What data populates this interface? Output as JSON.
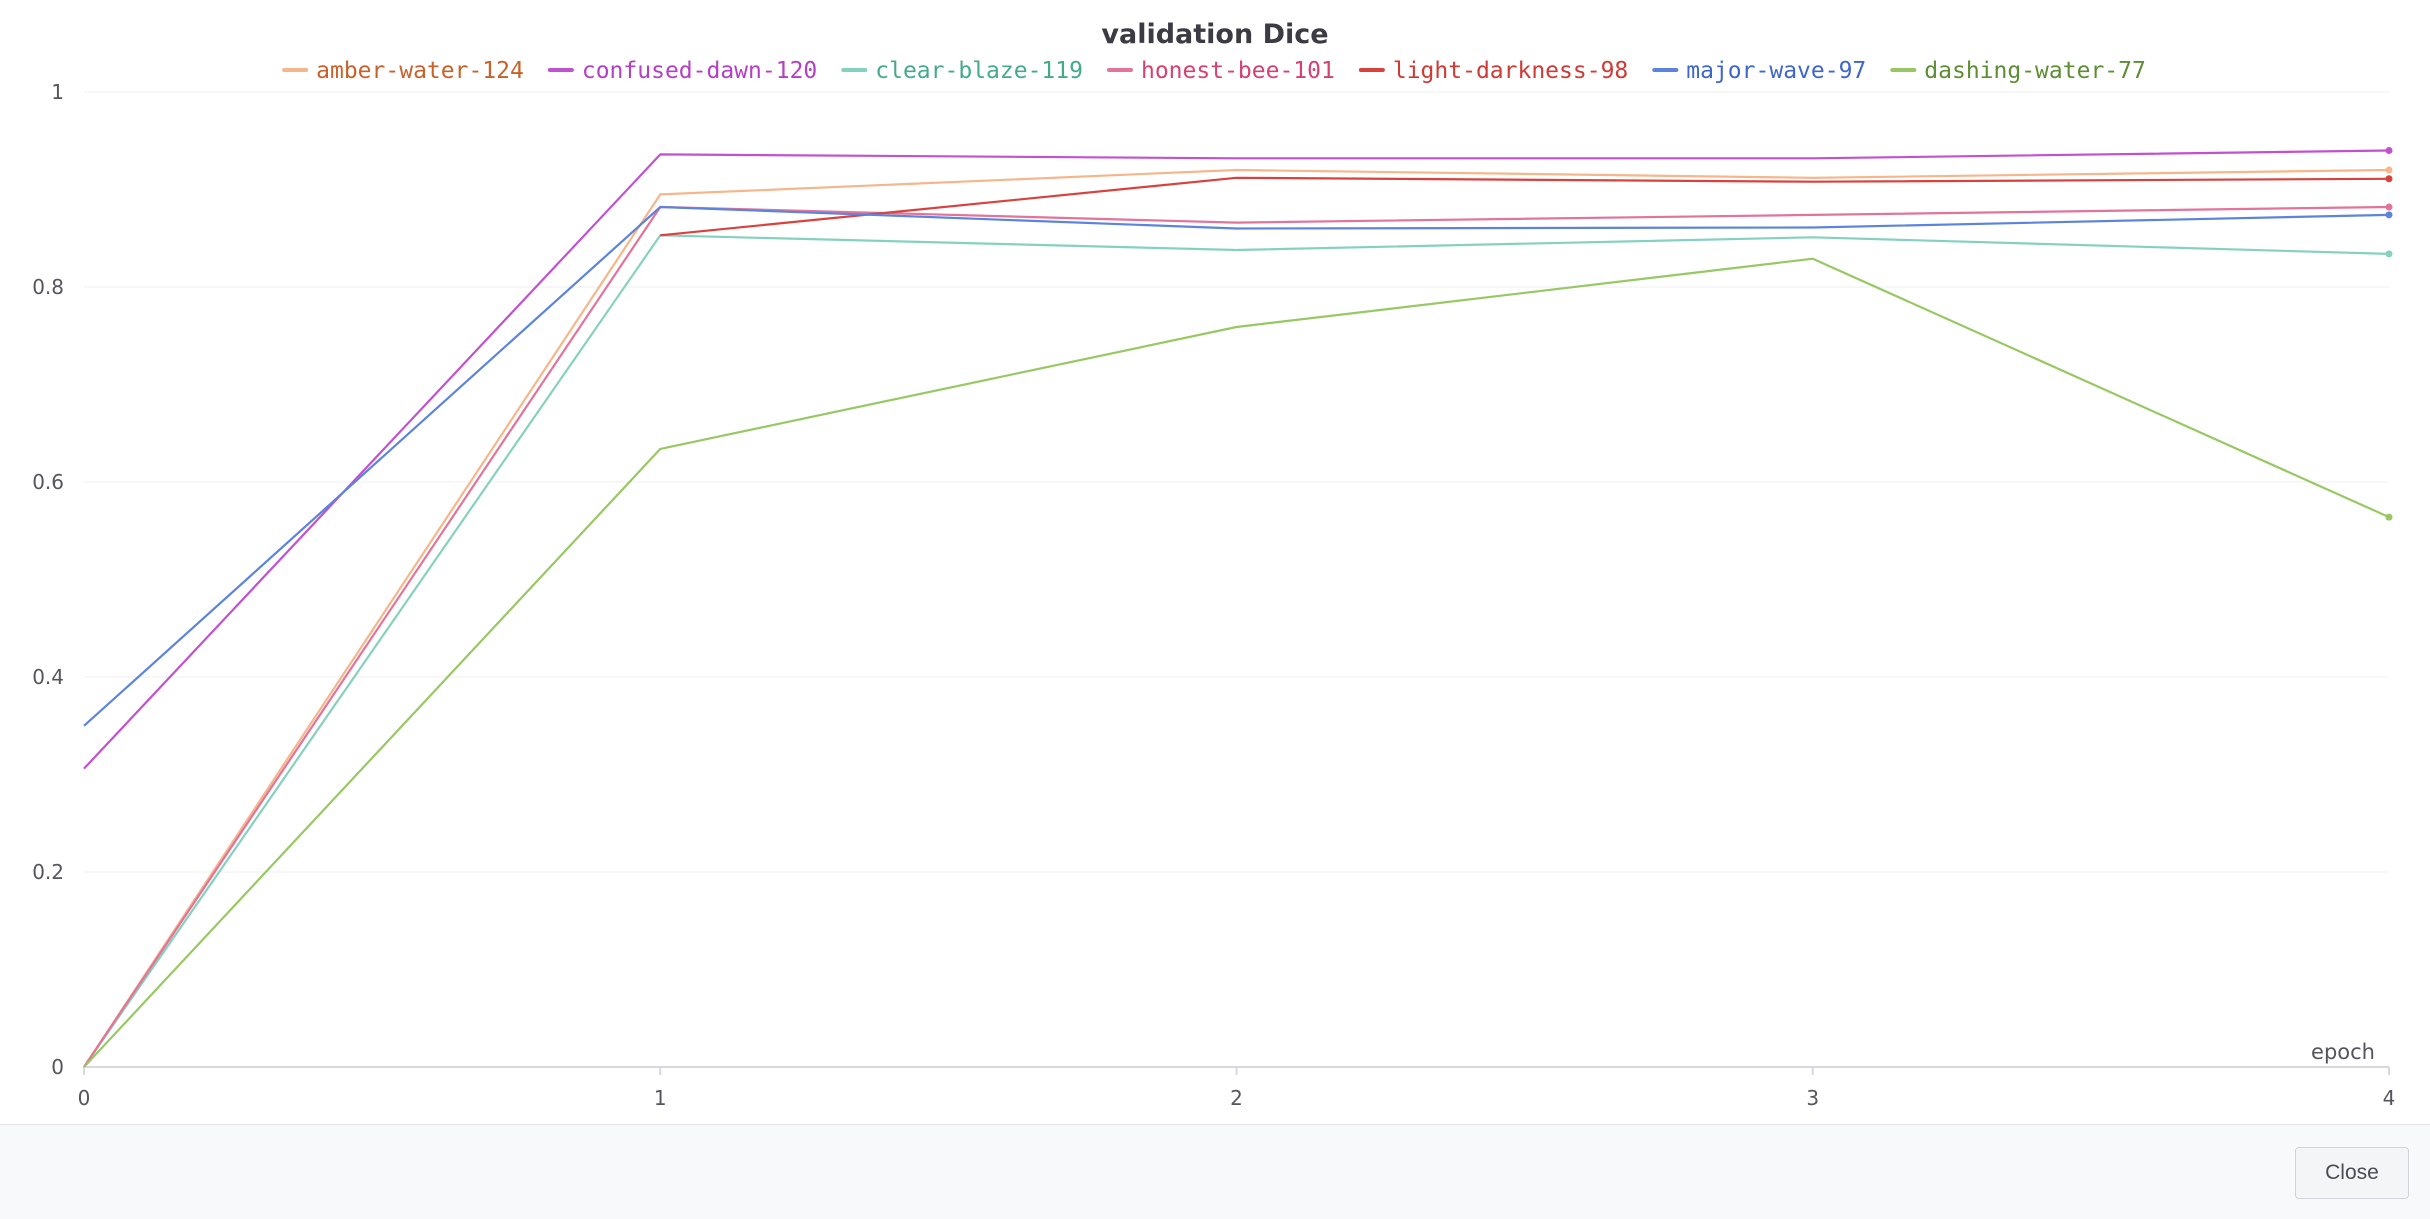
{
  "chart_data": {
    "type": "line",
    "title": "validation Dice",
    "xlabel": "epoch",
    "ylabel": "",
    "x": [
      0,
      1,
      2,
      3,
      4
    ],
    "xlim": [
      0,
      4
    ],
    "ylim": [
      0,
      1
    ],
    "x_ticks": [
      "0",
      "1",
      "2",
      "3",
      "4"
    ],
    "y_ticks": [
      "0",
      "0.2",
      "0.4",
      "0.6",
      "0.8",
      "1"
    ],
    "y_tick_values": [
      0,
      0.2,
      0.4,
      0.6,
      0.8,
      1
    ],
    "grid": true,
    "legend_position": "top",
    "series": [
      {
        "name": "amber-water-124",
        "color": "#f5b68b",
        "text_color": "#c8622a",
        "values": [
          0,
          0.895,
          0.92,
          0.912,
          0.92
        ]
      },
      {
        "name": "confused-dawn-120",
        "color": "#c251d0",
        "text_color": "#b53fc4",
        "values": [
          0.306,
          0.936,
          0.932,
          0.932,
          0.94
        ]
      },
      {
        "name": "clear-blaze-119",
        "color": "#86d1be",
        "text_color": "#45a98f",
        "values": [
          0,
          0.853,
          0.838,
          0.851,
          0.834
        ]
      },
      {
        "name": "honest-bee-101",
        "color": "#e2739a",
        "text_color": "#d6426f",
        "values": [
          0,
          0.882,
          0.866,
          0.874,
          0.882
        ]
      },
      {
        "name": "light-darkness-98",
        "color": "#d9413c",
        "text_color": "#cf3a35",
        "values": [
          null,
          0.853,
          0.912,
          0.908,
          0.911
        ]
      },
      {
        "name": "major-wave-97",
        "color": "#5c84dc",
        "text_color": "#3f66c9",
        "values": [
          0.35,
          0.882,
          0.86,
          0.861,
          0.874
        ]
      },
      {
        "name": "dashing-water-77",
        "color": "#98c863",
        "text_color": "#5e8d34",
        "values": [
          0,
          0.634,
          0.759,
          0.829,
          0.564
        ]
      }
    ]
  },
  "footer": {
    "close_label": "Close"
  }
}
